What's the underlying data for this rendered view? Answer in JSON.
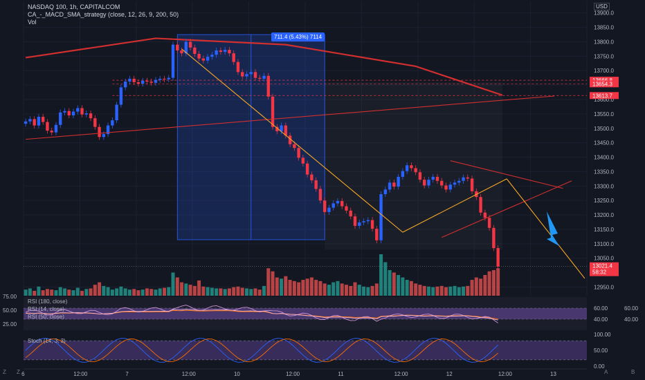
{
  "header": {
    "symbol_line": "NASDAQ 100, 1h, CAPITALCOM",
    "strategy_line": "CA_-_MACD_SMA_strategy (close, 12, 26, 9, 200, 50)",
    "volume_line": "Vol"
  },
  "currency_badge": "USD",
  "measure_label": "711.4 (5.43%) 7114",
  "price_axis": {
    "ticks": [
      "13900.0",
      "13850.0",
      "13800.0",
      "13750.0",
      "13700.0",
      "13650.0",
      "13600.0",
      "13550.0",
      "13500.0",
      "13450.0",
      "13400.0",
      "13350.0",
      "13300.0",
      "13250.0",
      "13200.0",
      "13150.0",
      "13100.0",
      "13050.0",
      "12950.0"
    ],
    "tick_values": [
      13900,
      13850,
      13800,
      13750,
      13700,
      13650,
      13600,
      13550,
      13500,
      13450,
      13400,
      13350,
      13300,
      13250,
      13200,
      13150,
      13100,
      13050,
      12950
    ],
    "labels": [
      {
        "text": "13666.8",
        "value": 13666.8,
        "color": "#f23645"
      },
      {
        "text": "13654.3",
        "value": 13654.3,
        "color": "#f23645"
      },
      {
        "text": "13613.7",
        "value": 13613.7,
        "color": "#f23645"
      }
    ],
    "last_price": {
      "text": "13021.4",
      "countdown": "58:32",
      "value": 13021.4,
      "color": "#f23645"
    }
  },
  "time_axis": {
    "labels": [
      "6",
      "12:00",
      "7",
      "12:00",
      "10",
      "12:00",
      "11",
      "12:00",
      "12",
      "12:00",
      "13"
    ],
    "bar_index": [
      0,
      12,
      24,
      37,
      49,
      61,
      73,
      86,
      98,
      110,
      122
    ]
  },
  "rsi_panel": {
    "legend": [
      "RSI (180, close)",
      "RSI (14, close)",
      "RSI (50, close)"
    ],
    "left_ticks": [
      "75.00",
      "50.00",
      "25.00"
    ],
    "right_ticks": [
      "60.00",
      "40.00"
    ],
    "far_right_ticks": [
      "60.00",
      "40.00"
    ],
    "levels": [
      60,
      40
    ]
  },
  "stoch_panel": {
    "legend": "Stoch (14, 3, 3)",
    "ticks": [
      "100.00",
      "50.00",
      "0.00"
    ],
    "levels": [
      80,
      20
    ]
  },
  "side_icons": {
    "z1": "Z",
    "z2": "Z",
    "a": "A",
    "b": "B"
  },
  "chart_data": {
    "type": "candlestick",
    "title": "NASDAQ 100, 1h, CAPITALCOM",
    "ylim": [
      12920,
      13940
    ],
    "colors": {
      "up": "#2962ff",
      "down": "#f23645",
      "vol_up": "#26a69a",
      "vol_down": "#ef5350",
      "sma200": "#d32f2f",
      "trend": "#f9a825"
    },
    "closes": [
      13524,
      13532,
      13510,
      13540,
      13522,
      13492,
      13486,
      13512,
      13555,
      13560,
      13545,
      13558,
      13570,
      13548,
      13552,
      13535,
      13505,
      13470,
      13480,
      13510,
      13528,
      13582,
      13642,
      13662,
      13672,
      13660,
      13655,
      13665,
      13662,
      13658,
      13668,
      13672,
      13670,
      13675,
      13790,
      13770,
      13760,
      13800,
      13780,
      13758,
      13742,
      13735,
      13748,
      13755,
      13770,
      13765,
      13772,
      13760,
      13730,
      13695,
      13680,
      13688,
      13695,
      13675,
      13672,
      13682,
      13610,
      13505,
      13490,
      13510,
      13475,
      13445,
      13432,
      13398,
      13378,
      13340,
      13320,
      13290,
      13250,
      13210,
      13225,
      13240,
      13248,
      13230,
      13215,
      13195,
      13162,
      13174,
      13178,
      13182,
      13152,
      13112,
      13272,
      13288,
      13312,
      13298,
      13332,
      13352,
      13372,
      13362,
      13348,
      13322,
      13302,
      13322,
      13332,
      13318,
      13302,
      13288,
      13305,
      13312,
      13318,
      13330,
      13326,
      13282,
      13262,
      13208,
      13190,
      13155,
      13085,
      13021
    ],
    "volumes": [
      10,
      12,
      8,
      15,
      9,
      11,
      10,
      9,
      14,
      12,
      10,
      9,
      13,
      8,
      11,
      12,
      18,
      22,
      16,
      14,
      10,
      12,
      15,
      12,
      10,
      11,
      9,
      10,
      12,
      11,
      10,
      12,
      13,
      14,
      38,
      30,
      22,
      20,
      18,
      16,
      25,
      15,
      14,
      13,
      12,
      12,
      11,
      12,
      14,
      15,
      13,
      12,
      11,
      12,
      10,
      16,
      45,
      40,
      30,
      28,
      32,
      26,
      24,
      22,
      26,
      28,
      30,
      26,
      24,
      20,
      18,
      22,
      24,
      20,
      18,
      16,
      22,
      18,
      15,
      14,
      16,
      20,
      68,
      55,
      42,
      38,
      34,
      30,
      26,
      24,
      20,
      18,
      16,
      15,
      14,
      15,
      16,
      14,
      15,
      16,
      14,
      15,
      16,
      26,
      30,
      28,
      34,
      40,
      42,
      45
    ],
    "sma200": [
      [
        0,
        13745
      ],
      [
        30,
        13812
      ],
      [
        60,
        13790
      ],
      [
        90,
        13715
      ],
      [
        110,
        13615
      ]
    ],
    "trend_lines": [
      {
        "name": "support",
        "color": "#d32f2f",
        "points": [
          [
            0,
            13462
          ],
          [
            122,
            13612
          ]
        ]
      },
      {
        "name": "channel-upper",
        "color": "#d32f2f",
        "points": [
          [
            98,
            13388
          ],
          [
            124,
            13292
          ]
        ]
      },
      {
        "name": "channel-lower",
        "color": "#d32f2f",
        "points": [
          [
            96,
            13122
          ],
          [
            126,
            13318
          ]
        ]
      },
      {
        "name": "fall",
        "color": "#f9a825",
        "points": [
          [
            36,
            13775
          ],
          [
            87,
            13140
          ]
        ]
      },
      {
        "name": "rise",
        "color": "#f9a825",
        "points": [
          [
            87,
            13140
          ],
          [
            111,
            13325
          ]
        ]
      },
      {
        "name": "projection",
        "color": "#f9a825",
        "points": [
          [
            111,
            13325
          ],
          [
            129,
            12980
          ]
        ]
      }
    ],
    "measure_box": {
      "x0": 35,
      "x1": 69,
      "y0": 13114,
      "y1": 13825
    }
  }
}
